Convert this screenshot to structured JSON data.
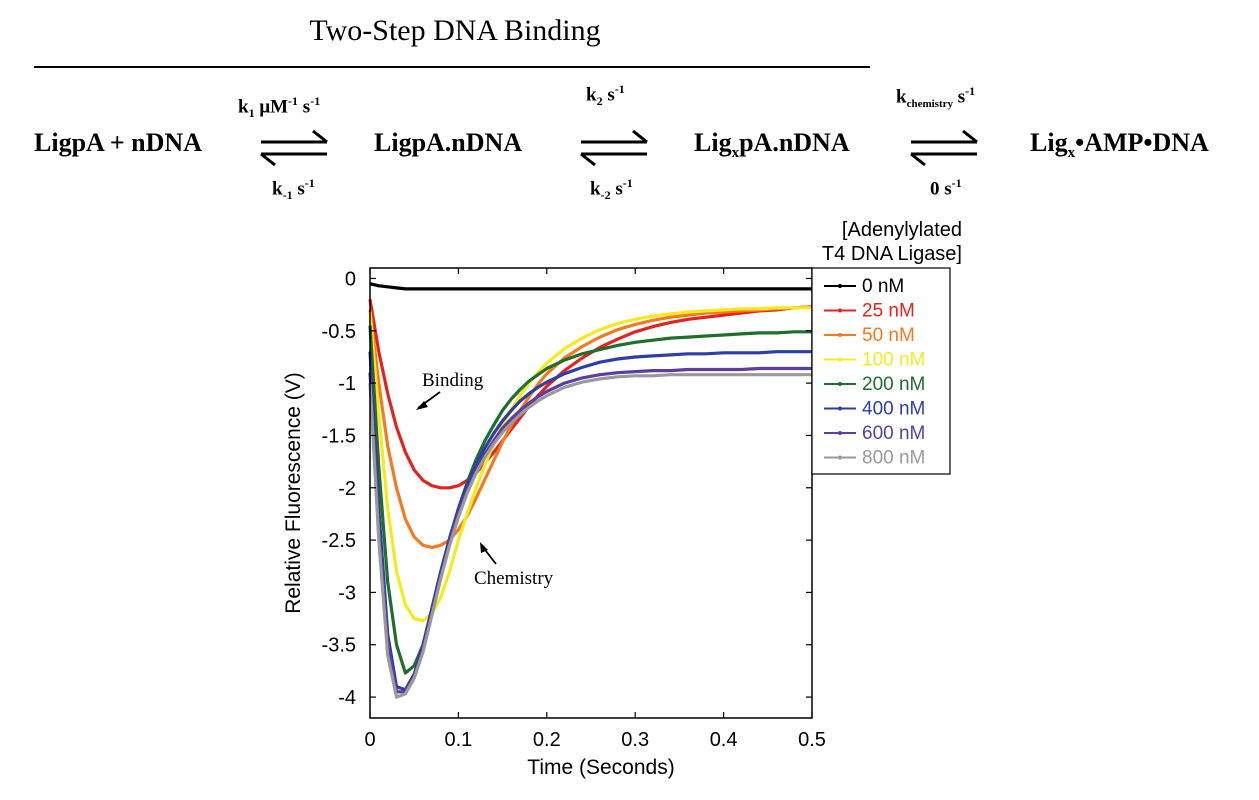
{
  "scheme": {
    "title": "Two-Step DNA Binding",
    "species": [
      "LigpA + nDNA",
      "LigpA.nDNA",
      "LigₓpA.nDNA",
      "Ligₓ•AMP•DNA"
    ],
    "species_parts": {
      "s3_main": "Lig",
      "s3_sub": "x",
      "s3_rest": "pA.nDNA",
      "s4_main": "Lig",
      "s4_sub": "x",
      "s4_rest": "•AMP•DNA"
    },
    "rates": {
      "k1": "k1 μM-1 s-1",
      "k1_main": "k",
      "k1_sub": "1",
      "k1_unit": " μM",
      "k1_sup1": "-1",
      "k1_s": " s",
      "k1_sup2": "-1",
      "km1": "k-1 s-1",
      "km1_main": "k",
      "km1_sub": "-1",
      "km1_s": " s",
      "km1_sup": "-1",
      "k2": "k2 s-1",
      "k2_main": "k",
      "k2_sub": "2",
      "k2_s": " s",
      "k2_sup": "-1",
      "km2": "k-2 s-1",
      "km2_main": "k",
      "km2_sub": "-2",
      "km2_s": " s",
      "km2_sup": "-1",
      "kchem": "kchemistry s-1",
      "kchem_main": "k",
      "kchem_sub": "chemistry",
      "kchem_s": " s",
      "kchem_sup": "-1",
      "kback": "0 s-1",
      "kback_main": "0 s",
      "kback_sup": "-1"
    }
  },
  "chart_data": {
    "type": "line",
    "xlabel": "Time (Seconds)",
    "ylabel": "Relative Fluorescence (V)",
    "xlim": [
      0,
      0.5
    ],
    "ylim": [
      -4.2,
      0.1
    ],
    "xticks": [
      0,
      0.1,
      0.2,
      0.3,
      0.4,
      0.5
    ],
    "xtick_labels": [
      "0",
      "0.1",
      "0.2",
      "0.3",
      "0.4",
      "0.5"
    ],
    "yticks": [
      0,
      -0.5,
      -1,
      -1.5,
      -2,
      -2.5,
      -3,
      -3.5,
      -4
    ],
    "ytick_labels": [
      "0",
      "-0.5",
      "-1",
      "-1.5",
      "-2",
      "-2.5",
      "-3",
      "-3.5",
      "-4"
    ],
    "legend_title": [
      "[Adenylylated",
      "T4 DNA Ligase]"
    ],
    "legend_position": "right",
    "annotations": [
      {
        "text": "Binding",
        "x": 0.085,
        "y": -1.0
      },
      {
        "text": "Chemistry",
        "x": 0.11,
        "y": -2.85
      }
    ],
    "x": [
      0,
      0.01,
      0.02,
      0.03,
      0.04,
      0.05,
      0.06,
      0.07,
      0.08,
      0.09,
      0.1,
      0.11,
      0.12,
      0.13,
      0.14,
      0.15,
      0.16,
      0.17,
      0.18,
      0.19,
      0.2,
      0.22,
      0.24,
      0.26,
      0.28,
      0.3,
      0.32,
      0.34,
      0.36,
      0.38,
      0.4,
      0.42,
      0.44,
      0.46,
      0.48,
      0.5
    ],
    "series": [
      {
        "name": "0 nM",
        "color": "#000000",
        "values": [
          -0.05,
          -0.07,
          -0.08,
          -0.09,
          -0.1,
          -0.1,
          -0.1,
          -0.1,
          -0.1,
          -0.1,
          -0.1,
          -0.1,
          -0.1,
          -0.1,
          -0.1,
          -0.1,
          -0.1,
          -0.1,
          -0.1,
          -0.1,
          -0.1,
          -0.1,
          -0.1,
          -0.1,
          -0.1,
          -0.1,
          -0.1,
          -0.1,
          -0.1,
          -0.1,
          -0.1,
          -0.1,
          -0.1,
          -0.1,
          -0.1,
          -0.1
        ]
      },
      {
        "name": "25 nM",
        "color": "#e3231d",
        "values": [
          -0.2,
          -0.7,
          -1.1,
          -1.42,
          -1.66,
          -1.83,
          -1.93,
          -1.98,
          -2.0,
          -2.0,
          -1.98,
          -1.93,
          -1.86,
          -1.76,
          -1.66,
          -1.55,
          -1.44,
          -1.33,
          -1.22,
          -1.12,
          -1.03,
          -0.88,
          -0.76,
          -0.66,
          -0.58,
          -0.51,
          -0.46,
          -0.42,
          -0.39,
          -0.37,
          -0.35,
          -0.33,
          -0.31,
          -0.3,
          -0.28,
          -0.27
        ]
      },
      {
        "name": "50 nM",
        "color": "#f47a20",
        "values": [
          -0.3,
          -1.0,
          -1.6,
          -2.0,
          -2.3,
          -2.47,
          -2.55,
          -2.57,
          -2.55,
          -2.5,
          -2.4,
          -2.27,
          -2.1,
          -1.92,
          -1.74,
          -1.56,
          -1.4,
          -1.26,
          -1.13,
          -1.01,
          -0.91,
          -0.76,
          -0.65,
          -0.56,
          -0.49,
          -0.44,
          -0.4,
          -0.37,
          -0.35,
          -0.33,
          -0.32,
          -0.31,
          -0.3,
          -0.29,
          -0.28,
          -0.27
        ]
      },
      {
        "name": "100 nM",
        "color": "#f4ea1c",
        "values": [
          -0.32,
          -1.3,
          -2.2,
          -2.8,
          -3.12,
          -3.25,
          -3.27,
          -3.2,
          -3.05,
          -2.8,
          -2.5,
          -2.25,
          -2.0,
          -1.78,
          -1.58,
          -1.4,
          -1.25,
          -1.12,
          -1.0,
          -0.9,
          -0.81,
          -0.67,
          -0.57,
          -0.49,
          -0.43,
          -0.39,
          -0.36,
          -0.34,
          -0.32,
          -0.31,
          -0.3,
          -0.29,
          -0.29,
          -0.28,
          -0.28,
          -0.28
        ]
      },
      {
        "name": "200 nM",
        "color": "#1f6e2c",
        "values": [
          -0.45,
          -1.8,
          -2.9,
          -3.5,
          -3.77,
          -3.7,
          -3.5,
          -3.2,
          -2.85,
          -2.5,
          -2.2,
          -1.95,
          -1.73,
          -1.55,
          -1.4,
          -1.26,
          -1.15,
          -1.06,
          -0.98,
          -0.92,
          -0.86,
          -0.78,
          -0.72,
          -0.68,
          -0.64,
          -0.61,
          -0.59,
          -0.57,
          -0.56,
          -0.55,
          -0.54,
          -0.53,
          -0.52,
          -0.52,
          -0.51,
          -0.51
        ]
      },
      {
        "name": "400 nM",
        "color": "#2c3fa6",
        "values": [
          -0.7,
          -2.2,
          -3.4,
          -3.9,
          -3.93,
          -3.78,
          -3.5,
          -3.15,
          -2.8,
          -2.48,
          -2.2,
          -1.97,
          -1.78,
          -1.62,
          -1.48,
          -1.36,
          -1.26,
          -1.17,
          -1.1,
          -1.04,
          -0.99,
          -0.91,
          -0.85,
          -0.8,
          -0.77,
          -0.75,
          -0.74,
          -0.73,
          -0.72,
          -0.72,
          -0.71,
          -0.71,
          -0.71,
          -0.7,
          -0.7,
          -0.7
        ]
      },
      {
        "name": "600 nM",
        "color": "#5b3fa0",
        "values": [
          -0.9,
          -2.4,
          -3.5,
          -3.95,
          -3.95,
          -3.8,
          -3.55,
          -3.2,
          -2.85,
          -2.52,
          -2.25,
          -2.02,
          -1.84,
          -1.68,
          -1.55,
          -1.43,
          -1.34,
          -1.26,
          -1.19,
          -1.13,
          -1.08,
          -1.0,
          -0.95,
          -0.92,
          -0.9,
          -0.89,
          -0.88,
          -0.88,
          -0.87,
          -0.87,
          -0.87,
          -0.87,
          -0.86,
          -0.86,
          -0.86,
          -0.86
        ]
      },
      {
        "name": "800 nM",
        "color": "#9a9a9a",
        "values": [
          -1.0,
          -2.5,
          -3.6,
          -4.0,
          -3.97,
          -3.82,
          -3.57,
          -3.22,
          -2.87,
          -2.55,
          -2.28,
          -2.05,
          -1.86,
          -1.71,
          -1.58,
          -1.47,
          -1.38,
          -1.3,
          -1.23,
          -1.17,
          -1.12,
          -1.04,
          -0.99,
          -0.96,
          -0.94,
          -0.93,
          -0.93,
          -0.92,
          -0.92,
          -0.92,
          -0.92,
          -0.92,
          -0.92,
          -0.92,
          -0.92,
          -0.92
        ]
      }
    ]
  }
}
